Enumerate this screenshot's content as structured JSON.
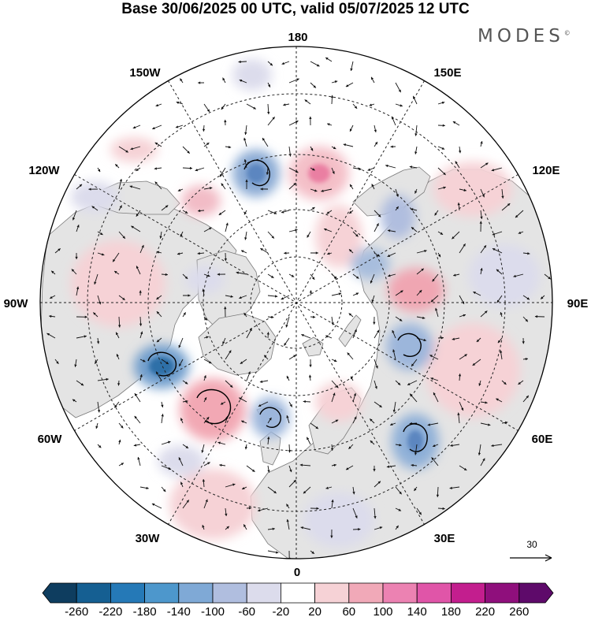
{
  "title": "Base 30/06/2025 00 UTC, valid 05/07/2025 12 UTC",
  "logo": {
    "text": "MODES",
    "mark": "©"
  },
  "map": {
    "projection": "north-polar-stereographic",
    "longitude_labels": {
      "top": "180",
      "top_left": "150W",
      "top_right": "150E",
      "upper_left": "120W",
      "upper_right": "120E",
      "left": "90W",
      "right": "90E",
      "lower_left": "60W",
      "lower_right": "60E",
      "bottom_left": "30W",
      "bottom_right": "30E",
      "bottom": "0"
    }
  },
  "reference_vector": {
    "label": "30"
  },
  "colorbar": {
    "ticks": [
      "-260",
      "-220",
      "-180",
      "-140",
      "-100",
      "-60",
      "-20",
      "20",
      "60",
      "100",
      "140",
      "180",
      "220",
      "260"
    ],
    "colors": [
      "#0e3d5f",
      "#155f92",
      "#2579b7",
      "#4d97cc",
      "#7fa9d6",
      "#b0bedf",
      "#dcdcec",
      "#ffffff",
      "#f6d2d6",
      "#f1a9b8",
      "#ec82b2",
      "#e055a8",
      "#c31e8e",
      "#8f0f7c",
      "#5e0a6a"
    ],
    "open_ends": true
  }
}
